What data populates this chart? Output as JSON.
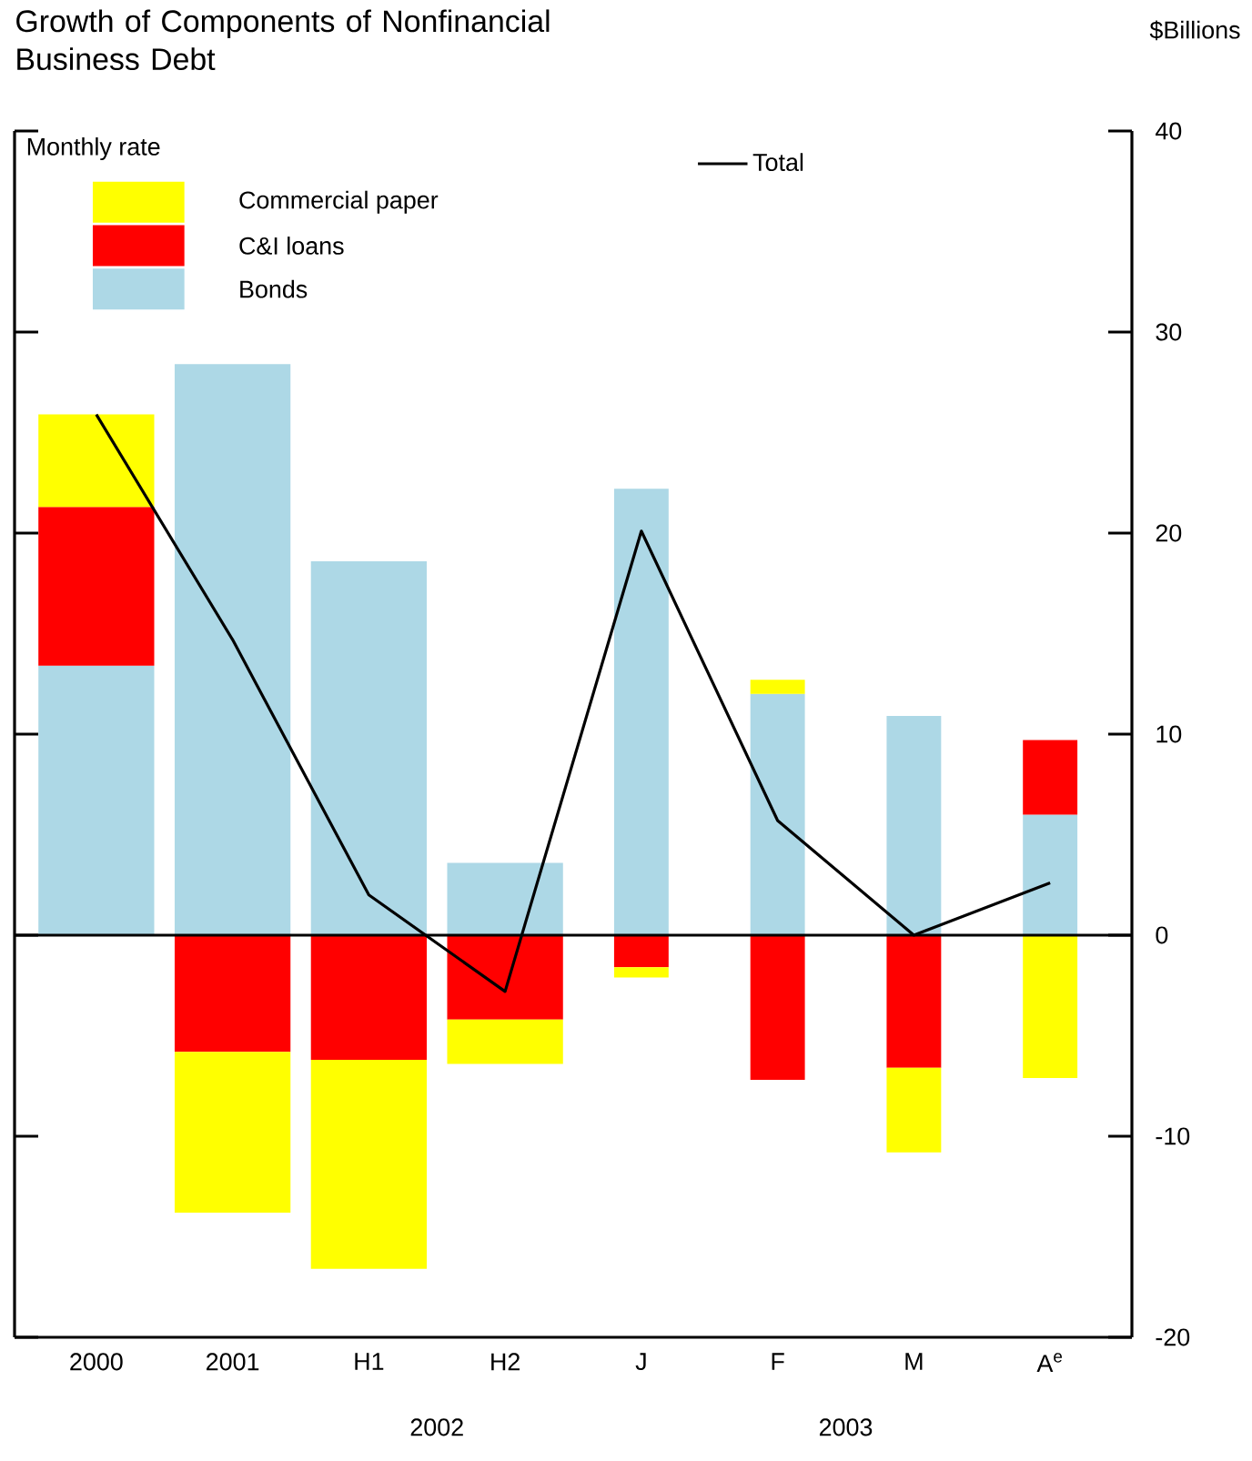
{
  "chart_data": {
    "type": "bar",
    "stacked": true,
    "title": "Growth of Components of Nonfinancial Business Debt",
    "ylabel": "$Billions",
    "legend_title": "Monthly rate",
    "categories": [
      "2000",
      "2001",
      "H1",
      "H2",
      "J",
      "F",
      "M",
      "A$^{e}$"
    ],
    "annotations": [
      "2002",
      "2003"
    ],
    "series": [
      {
        "name": "Bonds",
        "color": "#add8e6",
        "values": [
          13.4,
          28.4,
          18.6,
          3.6,
          22.2,
          12.0,
          10.9,
          6.0
        ]
      },
      {
        "name": "C&I loans",
        "color": "#ff0000",
        "values": [
          7.9,
          -5.8,
          -6.2,
          -4.2,
          -1.6,
          -7.2,
          -6.6,
          3.7
        ]
      },
      {
        "name": "Commercial paper",
        "color": "#ffff00",
        "values": [
          4.6,
          -8.0,
          -10.4,
          -2.2,
          -0.5,
          0.7,
          -4.2,
          -7.1
        ]
      },
      {
        "name": "Total",
        "type": "line",
        "color": "#000000",
        "values": [
          25.9,
          14.7,
          2.0,
          -2.8,
          20.1,
          5.7,
          0.0,
          2.6
        ]
      }
    ],
    "ylim": [
      -20,
      40
    ],
    "yticks": [
      -20,
      -10,
      0,
      10,
      20,
      30,
      40
    ],
    "ref_lines": [
      {
        "axis": "y",
        "value": 0,
        "color": "#000000"
      }
    ],
    "legend": "top left",
    "grid": false
  }
}
